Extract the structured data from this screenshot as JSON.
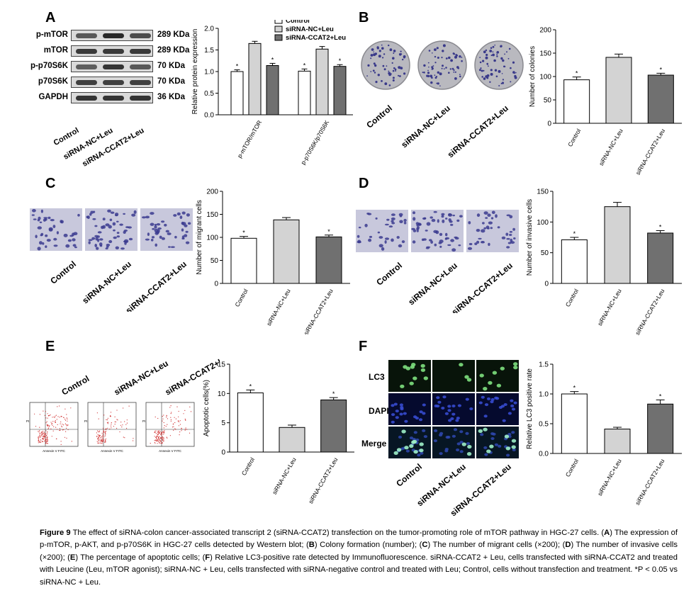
{
  "panels": {
    "A": {
      "letter": "A",
      "blot_rows": [
        {
          "label": "p-mTOR",
          "size": "289 KDa"
        },
        {
          "label": "mTOR",
          "size": "289 KDa"
        },
        {
          "label": "p-p70S6K",
          "size": "70 KDa"
        },
        {
          "label": "p70S6K",
          "size": "70 KDa"
        },
        {
          "label": "GAPDH",
          "size": "36 KDa"
        }
      ],
      "group_labels": [
        "Control",
        "siRNA-NC+Leu",
        "siRNA-CCAT2+Leu"
      ]
    },
    "B": {
      "letter": "B",
      "image_labels": [
        "Control",
        "siRNA-NC+Leu",
        "siRNA-CCAT2+Leu"
      ]
    },
    "C": {
      "letter": "C",
      "image_labels": [
        "Control",
        "siRNA-NC+Leu",
        "siRNA-CCAT2+Leu"
      ]
    },
    "D": {
      "letter": "D",
      "image_labels": [
        "Control",
        "siRNA-NC+Leu",
        "siRNA-CCAT2+Leu"
      ]
    },
    "E": {
      "letter": "E",
      "image_labels": [
        "Control",
        "siRNA-NC+Leu",
        "siRNA-CCAT2+Leu"
      ],
      "flow_xlabel": "Annexin V FITC",
      "flow_ylabel": "PI"
    },
    "F": {
      "letter": "F",
      "row_labels": [
        "LC3",
        "DAPI",
        "Merge"
      ],
      "image_labels": [
        "Control",
        "siRNA-NC+Leu",
        "siRNA-CCAT2+Leu"
      ]
    }
  },
  "chart_data": [
    {
      "id": "A",
      "type": "bar",
      "categories": [
        "p-mTOR/mTOR",
        "p-p70S6K/p70S6K"
      ],
      "series": [
        {
          "name": "Control",
          "values": [
            1.0,
            1.01
          ],
          "errors": [
            0.04,
            0.05
          ],
          "color": "#ffffff"
        },
        {
          "name": "siRNA-NC+Leu",
          "values": [
            1.65,
            1.52
          ],
          "errors": [
            0.05,
            0.06
          ],
          "color": "#d3d3d3"
        },
        {
          "name": "siRNA-CCAT2+Leu",
          "values": [
            1.14,
            1.12
          ],
          "errors": [
            0.05,
            0.04
          ],
          "color": "#707070"
        }
      ],
      "ylabel": "Relative protein expression",
      "ylim": [
        0,
        2.0
      ],
      "yticks": [
        "0.0",
        "0.5",
        "1.0",
        "1.5",
        "2.0"
      ],
      "legend": "top-right",
      "star": "*"
    },
    {
      "id": "B",
      "type": "bar",
      "categories": [
        "Control",
        "siRNA-NC+Leu",
        "siRNA-CCAT2+Leu"
      ],
      "values": [
        93,
        141,
        103
      ],
      "errors": [
        6,
        7,
        4
      ],
      "colors": [
        "#ffffff",
        "#d3d3d3",
        "#707070"
      ],
      "ylabel": "Number of colonies",
      "ylim": [
        0,
        200
      ],
      "yticks": [
        "0",
        "50",
        "100",
        "150",
        "200"
      ],
      "stars": [
        "*",
        "",
        "*"
      ]
    },
    {
      "id": "C",
      "type": "bar",
      "categories": [
        "Control",
        "siRNA-NC+Leu",
        "siRNA-CCAT2+Leu"
      ],
      "values": [
        98,
        138,
        101
      ],
      "errors": [
        4,
        5,
        4
      ],
      "colors": [
        "#ffffff",
        "#d3d3d3",
        "#707070"
      ],
      "ylabel": "Number of migrant cells",
      "ylim": [
        0,
        200
      ],
      "yticks": [
        "0",
        "50",
        "100",
        "150",
        "200"
      ],
      "stars": [
        "*",
        "",
        "*"
      ]
    },
    {
      "id": "D",
      "type": "bar",
      "categories": [
        "Control",
        "siRNA-NC+Leu",
        "siRNA-CCAT2+Leu"
      ],
      "values": [
        71,
        125,
        82
      ],
      "errors": [
        4,
        7,
        4
      ],
      "colors": [
        "#ffffff",
        "#d3d3d3",
        "#707070"
      ],
      "ylabel": "Number of invasive cells",
      "ylim": [
        0,
        150
      ],
      "yticks": [
        "0",
        "50",
        "100",
        "150"
      ],
      "stars": [
        "*",
        "",
        "*"
      ]
    },
    {
      "id": "E",
      "type": "bar",
      "categories": [
        "Control",
        "siRNA-NC+Leu",
        "siRNA-CCAT2+Leu"
      ],
      "values": [
        10.1,
        4.2,
        8.9
      ],
      "errors": [
        0.5,
        0.4,
        0.4
      ],
      "colors": [
        "#ffffff",
        "#d3d3d3",
        "#707070"
      ],
      "ylabel": "Apoptotic cells(%)",
      "ylim": [
        0,
        15
      ],
      "yticks": [
        "0",
        "5",
        "10",
        "15"
      ],
      "stars": [
        "*",
        "",
        "*"
      ]
    },
    {
      "id": "F",
      "type": "bar",
      "categories": [
        "Control",
        "siRNA-NC+Leu",
        "siRNA-CCAT2+Leu"
      ],
      "values": [
        1.0,
        0.41,
        0.83
      ],
      "errors": [
        0.04,
        0.03,
        0.07
      ],
      "colors": [
        "#ffffff",
        "#d3d3d3",
        "#707070"
      ],
      "ylabel": "Relative LC3 positive rate",
      "ylim": [
        0,
        1.5
      ],
      "yticks": [
        "0.0",
        "0.5",
        "1.0",
        "1.5"
      ],
      "stars": [
        "*",
        "",
        "*"
      ]
    }
  ],
  "caption": {
    "title": "Figure 9",
    "s1": " The effect of siRNA-colon cancer-associated transcript 2 (siRNA-CCAT2) transfection on the tumor-promoting role of mTOR pathway in HGC-27 cells. (",
    "A": "A",
    "s2": ") The expression of p-mTOR, p-AKT, and p-p70S6K in HGC-27 cells detected by Western blot; (",
    "B": "B",
    "s3": ") Colony formation (number); (",
    "C": "C",
    "s4": ") The number of migrant cells (×200); (",
    "D": "D",
    "s5": ") The number of invasive cells (×200); (",
    "E": "E",
    "s6": ") The percentage of apoptotic cells; (",
    "F": "F",
    "s7": ") Relative LC3-positive rate detected by Immunofluorescence. siRNA-CCAT2 + Leu, cells transfected with siRNA-CCAT2 and treated with Leucine (Leu, mTOR agonist); siRNA-NC + Leu, cells transfected with siRNA-negative control and treated with Leu; Control, cells without transfection and treatment. *P < 0.05 vs siRNA-NC + Leu."
  }
}
